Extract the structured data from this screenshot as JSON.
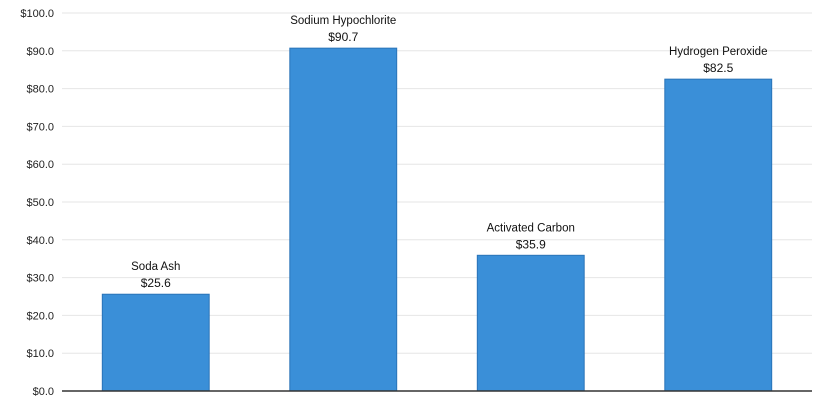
{
  "chart_data": {
    "type": "bar",
    "categories": [
      "Soda Ash",
      "Sodium Hypochlorite",
      "Activated Carbon",
      "Hydrogen Peroxide"
    ],
    "values": [
      25.6,
      90.7,
      35.9,
      82.5
    ],
    "value_labels": [
      "$25.6",
      "$90.7",
      "$35.9",
      "$82.5"
    ],
    "title": "",
    "xlabel": "",
    "ylabel": "",
    "ylim": [
      0,
      100
    ],
    "yticks": [
      0,
      10,
      20,
      30,
      40,
      50,
      60,
      70,
      80,
      90,
      100
    ],
    "ytick_labels": [
      "$0.0",
      "$10.0",
      "$20.0",
      "$30.0",
      "$40.0",
      "$50.0",
      "$60.0",
      "$70.0",
      "$80.0",
      "$90.0",
      "$100.0"
    ],
    "grid": true,
    "legend": "none",
    "bar_color": "#3a8fd8",
    "bar_edge_color": "#2a74b8",
    "grid_color": "#e6e6e6",
    "axis_color": "#333333"
  }
}
